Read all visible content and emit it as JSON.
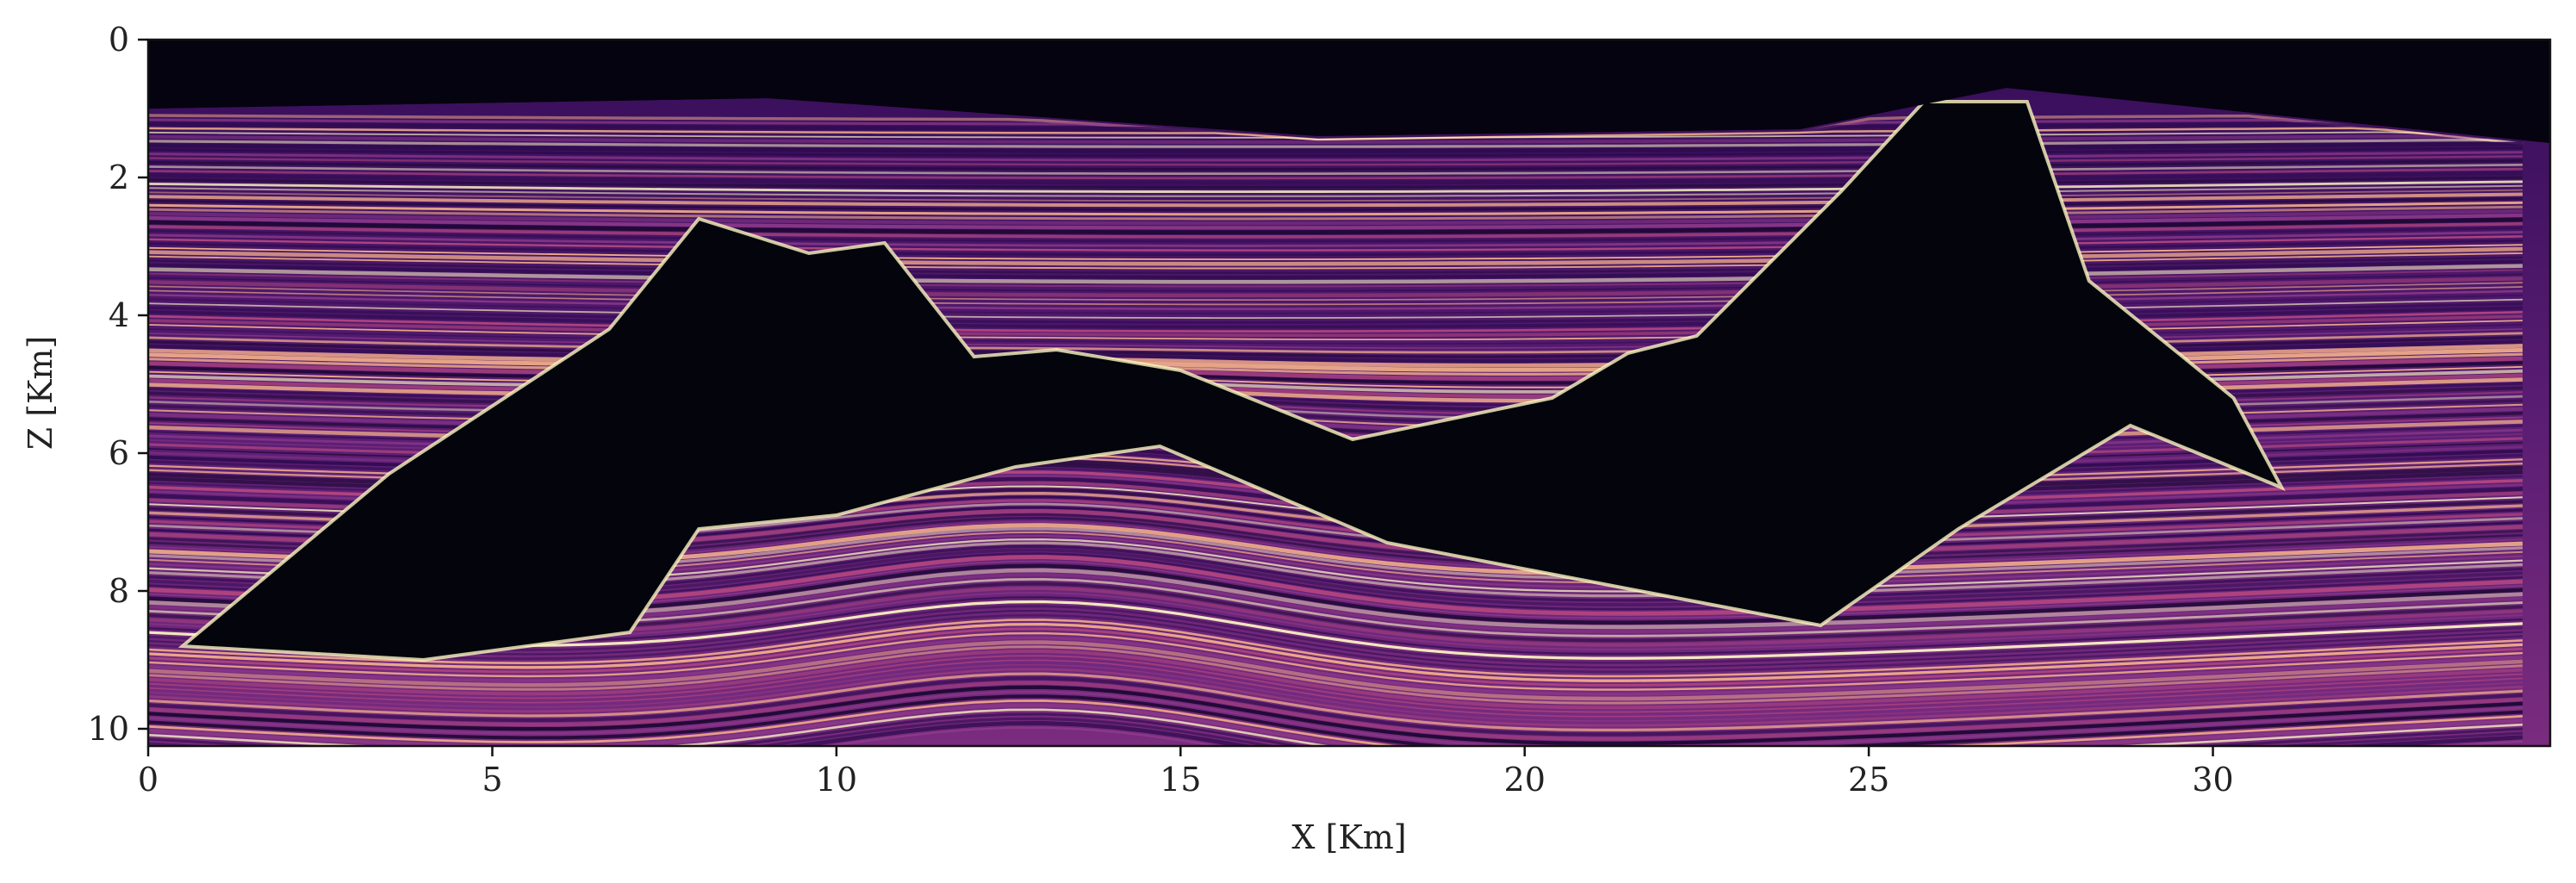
{
  "chart_data": {
    "type": "heatmap",
    "title": "",
    "xlabel": "X [Km]",
    "ylabel": "Z [Km]",
    "xlim": [
      0,
      34.9
    ],
    "ylim": [
      10.25,
      0
    ],
    "x_ticks": [
      0,
      5,
      10,
      15,
      20,
      25,
      30
    ],
    "y_ticks": [
      0,
      2,
      4,
      6,
      8,
      10
    ],
    "colormap": "magma",
    "grid": false,
    "legend": "none",
    "water_bottom_depth_km": [
      [
        0,
        1.0
      ],
      [
        9,
        0.85
      ],
      [
        17,
        1.4
      ],
      [
        24,
        1.3
      ],
      [
        27,
        0.7
      ],
      [
        34.9,
        1.5
      ]
    ],
    "salt_body_top_km": [
      [
        0.5,
        8.8
      ],
      [
        3.5,
        6.3
      ],
      [
        6.7,
        4.2
      ],
      [
        8.0,
        2.6
      ],
      [
        9.6,
        3.1
      ],
      [
        10.7,
        2.95
      ],
      [
        12.0,
        4.6
      ],
      [
        13.2,
        4.5
      ],
      [
        15.0,
        4.8
      ],
      [
        17.5,
        5.8
      ],
      [
        20.4,
        5.2
      ],
      [
        21.5,
        4.55
      ],
      [
        22.5,
        4.3
      ],
      [
        24.6,
        2.2
      ],
      [
        25.8,
        0.9
      ],
      [
        27.3,
        0.9
      ],
      [
        28.2,
        3.5
      ],
      [
        30.3,
        5.2
      ],
      [
        31.0,
        6.5
      ]
    ],
    "salt_body_base_km": [
      [
        0.5,
        8.8
      ],
      [
        4.0,
        9.0
      ],
      [
        7.0,
        8.6
      ],
      [
        8.0,
        7.1
      ],
      [
        10.0,
        6.9
      ],
      [
        12.6,
        6.2
      ],
      [
        14.7,
        5.9
      ],
      [
        18.0,
        7.3
      ],
      [
        24.3,
        8.5
      ],
      [
        26.3,
        7.1
      ],
      [
        28.8,
        5.6
      ],
      [
        31.0,
        6.5
      ]
    ],
    "colors": {
      "background": "#05030f",
      "salt": "#04040c",
      "sediment_low": "#2e0b4f",
      "sediment_mid": "#8e3a8a",
      "sediment_high": "#f7b48a",
      "sediment_peak": "#fcf7c2"
    }
  }
}
